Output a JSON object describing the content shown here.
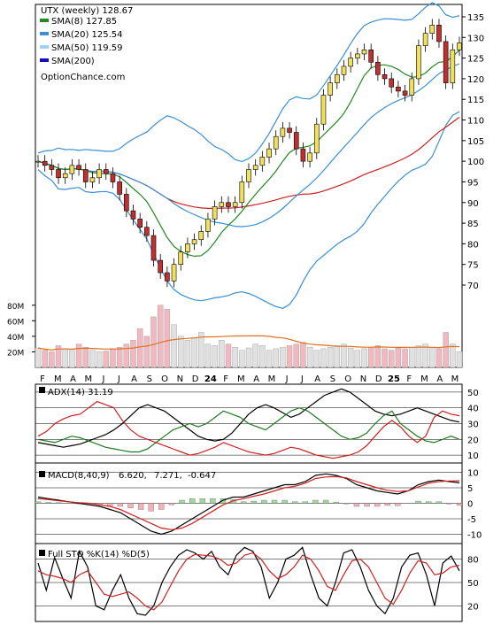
{
  "chart_data": [
    {
      "type": "candlestick",
      "title": "UTX (weekly) 128.67",
      "watermark": "OptionChance.com",
      "legend": [
        {
          "name": "SMA(8) 127.85",
          "color": "#1f8a1f"
        },
        {
          "name": "SMA(20) 125.54",
          "color": "#3a8fd6"
        },
        {
          "name": "SMA(50) 119.59",
          "color": "#9ed2f0"
        },
        {
          "name": "SMA(200)",
          "color": "#1010c0"
        }
      ],
      "y_ticks": [
        70,
        75,
        80,
        85,
        90,
        95,
        100,
        105,
        110,
        115,
        120,
        125,
        130,
        135
      ],
      "ylim": [
        67,
        138
      ],
      "x_labels": [
        "F",
        "M",
        "A",
        "M",
        "J",
        "J",
        "A",
        "S",
        "O",
        "N",
        "D",
        "24",
        "F",
        "M",
        "A",
        "M",
        "J",
        "J",
        "A",
        "S",
        "O",
        "N",
        "D",
        "25",
        "F",
        "M",
        "A",
        "M"
      ],
      "colors": {
        "up": "#f0e060",
        "down": "#c03030",
        "upper_band": "#f0e060",
        "bollinger": "#3a8fd6",
        "sma50_red": "#cc2020"
      },
      "close": [
        100,
        99,
        98,
        96,
        97,
        99,
        98,
        95,
        96,
        98,
        97,
        95,
        92,
        88,
        86,
        84,
        82,
        76,
        73,
        71,
        75,
        78,
        80,
        81,
        83,
        86,
        89,
        90,
        89,
        90,
        95,
        98,
        99,
        101,
        103,
        106,
        108,
        107,
        103,
        100,
        102,
        109,
        116,
        119,
        121,
        123,
        125,
        126,
        127,
        124,
        121,
        120,
        118,
        117,
        116,
        120,
        128,
        131,
        133,
        129,
        119,
        127,
        128.67
      ],
      "volume_ticks": [
        "80M",
        "60M",
        "40M",
        "20M"
      ],
      "volume_ylim": [
        0,
        90
      ],
      "volume": [
        25,
        22,
        20,
        28,
        24,
        22,
        30,
        26,
        22,
        20,
        21,
        24,
        26,
        30,
        35,
        50,
        40,
        65,
        80,
        75,
        55,
        40,
        35,
        38,
        45,
        30,
        28,
        35,
        30,
        26,
        22,
        25,
        30,
        28,
        22,
        24,
        26,
        28,
        30,
        32,
        26,
        22,
        24,
        26,
        28,
        30,
        25,
        22,
        24,
        26,
        28,
        24,
        22,
        25,
        24,
        26,
        28,
        30,
        26,
        24,
        45,
        30,
        20
      ]
    },
    {
      "type": "line",
      "title": "ADX(14) 31.19",
      "y_ticks": [
        10,
        20,
        30,
        40,
        50
      ],
      "ylim": [
        5,
        55
      ],
      "series": [
        {
          "name": "ADX(14) 31.19",
          "color": "#000000",
          "values": [
            18,
            17,
            16,
            15,
            16,
            17,
            19,
            21,
            23,
            26,
            30,
            35,
            40,
            42,
            40,
            38,
            34,
            30,
            26,
            22,
            20,
            19,
            20,
            24,
            30,
            36,
            40,
            42,
            40,
            37,
            34,
            36,
            40,
            44,
            48,
            50,
            52,
            50,
            46,
            42,
            38,
            36,
            35,
            36,
            38,
            40,
            38,
            36,
            34,
            32,
            31
          ]
        },
        {
          "name": "+DI",
          "color": "#1f7a1f",
          "values": [
            20,
            19,
            18,
            20,
            22,
            21,
            19,
            17,
            15,
            14,
            13,
            12,
            12,
            14,
            18,
            22,
            26,
            28,
            30,
            28,
            30,
            34,
            38,
            36,
            34,
            30,
            28,
            26,
            30,
            34,
            38,
            40,
            38,
            34,
            30,
            26,
            22,
            20,
            21,
            24,
            30,
            35,
            38,
            30,
            26,
            22,
            19,
            18,
            20,
            22,
            20
          ]
        },
        {
          "name": "-DI",
          "color": "#d02020",
          "values": [
            22,
            25,
            30,
            33,
            35,
            36,
            40,
            44,
            42,
            40,
            32,
            26,
            22,
            20,
            18,
            16,
            14,
            12,
            10,
            11,
            13,
            15,
            18,
            16,
            14,
            12,
            11,
            10,
            11,
            13,
            15,
            14,
            12,
            10,
            9,
            8,
            9,
            10,
            12,
            16,
            22,
            28,
            32,
            28,
            22,
            18,
            22,
            34,
            38,
            36,
            35
          ]
        }
      ]
    },
    {
      "type": "line",
      "title": "MACD(8,40,9)",
      "title_values": [
        "6.620,",
        "7.271,",
        "-0.647"
      ],
      "y_ticks": [
        10,
        5,
        0,
        -5,
        -10
      ],
      "ylim": [
        -13,
        13
      ],
      "series": [
        {
          "name": "MACD",
          "color": "#000000",
          "values": [
            2,
            1.5,
            1,
            0.5,
            0,
            -0.5,
            -1,
            -2,
            -3,
            -5,
            -7,
            -9,
            -10,
            -9,
            -7,
            -5,
            -3,
            -1,
            1,
            2,
            2,
            3,
            4,
            5,
            6,
            6,
            7,
            9,
            9.5,
            9,
            8,
            6,
            5,
            4,
            3.5,
            3,
            4,
            6,
            7,
            7.5,
            7,
            6.6
          ]
        },
        {
          "name": "Signal",
          "color": "#d02020",
          "values": [
            1.5,
            1.2,
            0.8,
            0.5,
            0.2,
            0,
            -0.5,
            -1,
            -2,
            -3.5,
            -5,
            -6.5,
            -8,
            -8.5,
            -8,
            -6.5,
            -4.5,
            -2.5,
            -0.5,
            0.8,
            1.5,
            2.3,
            3,
            4,
            5,
            5.5,
            6.5,
            8,
            8.5,
            8.6,
            8.2,
            7,
            6,
            5,
            4.2,
            3.8,
            4,
            5.3,
            6.5,
            7,
            7.2,
            7.27
          ]
        }
      ],
      "histogram": [
        0.5,
        0.3,
        0.2,
        0,
        -0.2,
        -0.5,
        -0.5,
        -1,
        -1,
        -1.5,
        -2,
        -2.5,
        -2,
        -0.5,
        1,
        1.5,
        1.5,
        1.5,
        1.5,
        1.2,
        0.5,
        0.7,
        1,
        1,
        1,
        0.5,
        0.5,
        1,
        1,
        0.4,
        -0.2,
        -1,
        -1,
        -1,
        -0.7,
        -0.8,
        0,
        0.7,
        0.5,
        0.5,
        -0.2,
        -0.647
      ]
    },
    {
      "type": "line",
      "title": "Full STO %K(14) %D(5)",
      "y_ticks": [
        80,
        50,
        20
      ],
      "ylim": [
        0,
        100
      ],
      "series": [
        {
          "name": "%K",
          "color": "#000000",
          "values": [
            75,
            40,
            82,
            55,
            30,
            90,
            70,
            20,
            15,
            40,
            60,
            30,
            10,
            8,
            20,
            50,
            70,
            85,
            92,
            88,
            80,
            90,
            70,
            60,
            85,
            95,
            90,
            70,
            30,
            50,
            80,
            85,
            95,
            60,
            30,
            20,
            50,
            88,
            92,
            70,
            40,
            20,
            10,
            30,
            70,
            85,
            88,
            60,
            20,
            75,
            84,
            65
          ]
        },
        {
          "name": "%D",
          "color": "#d02020",
          "values": [
            65,
            60,
            58,
            55,
            50,
            60,
            65,
            50,
            35,
            32,
            35,
            38,
            30,
            20,
            15,
            25,
            45,
            65,
            80,
            86,
            85,
            84,
            80,
            72,
            75,
            85,
            88,
            80,
            65,
            55,
            60,
            70,
            85,
            80,
            65,
            45,
            40,
            60,
            78,
            80,
            70,
            50,
            30,
            22,
            40,
            62,
            78,
            75,
            60,
            62,
            70,
            72
          ]
        }
      ]
    }
  ]
}
